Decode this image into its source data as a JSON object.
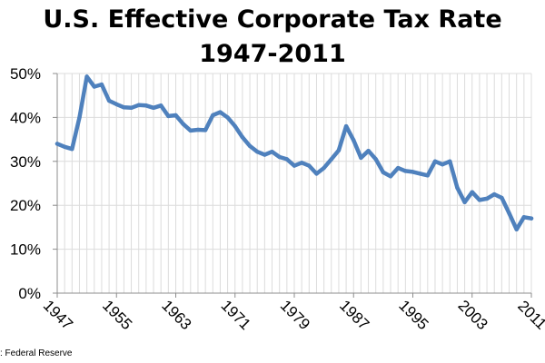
{
  "chart_data": {
    "type": "line",
    "title_line1": "U.S. Effective Corporate Tax Rate",
    "title_line2": "1947-2011",
    "source": ": Federal Reserve",
    "xlabel": "",
    "ylabel": "",
    "x_range": [
      1947,
      2011
    ],
    "ylim": [
      0,
      50
    ],
    "y_ticks": [
      0,
      10,
      20,
      30,
      40,
      50
    ],
    "y_tick_labels": [
      "0%",
      "10%",
      "20%",
      "30%",
      "40%",
      "50%"
    ],
    "x_ticks": [
      1947,
      1955,
      1963,
      1971,
      1979,
      1987,
      1995,
      2003,
      2011
    ],
    "x_tick_labels": [
      "1947",
      "1955",
      "1963",
      "1971",
      "1979",
      "1987",
      "1995",
      "2003",
      "2011"
    ],
    "grid": true,
    "line_color": "#4f81bd",
    "series": [
      {
        "name": "Effective Corporate Tax Rate",
        "x": [
          1947,
          1948,
          1949,
          1950,
          1951,
          1952,
          1953,
          1954,
          1955,
          1956,
          1957,
          1958,
          1959,
          1960,
          1961,
          1962,
          1963,
          1964,
          1965,
          1966,
          1967,
          1968,
          1969,
          1970,
          1971,
          1972,
          1973,
          1974,
          1975,
          1976,
          1977,
          1978,
          1979,
          1980,
          1981,
          1982,
          1983,
          1984,
          1985,
          1986,
          1987,
          1988,
          1989,
          1990,
          1991,
          1992,
          1993,
          1994,
          1995,
          1996,
          1997,
          1998,
          1999,
          2000,
          2001,
          2002,
          2003,
          2004,
          2005,
          2006,
          2007,
          2008,
          2009,
          2010,
          2011
        ],
        "values": [
          34.0,
          33.3,
          32.8,
          40.0,
          49.3,
          47.0,
          47.5,
          43.8,
          43.0,
          42.3,
          42.2,
          42.8,
          42.7,
          42.2,
          42.7,
          40.3,
          40.5,
          38.5,
          37.0,
          37.2,
          37.1,
          40.5,
          41.2,
          40.0,
          38.0,
          35.5,
          33.5,
          32.2,
          31.5,
          32.2,
          31.0,
          30.5,
          29.0,
          29.7,
          29.0,
          27.2,
          28.5,
          30.5,
          32.5,
          38.0,
          34.8,
          30.8,
          32.4,
          30.5,
          27.5,
          26.6,
          28.5,
          27.8,
          27.6,
          27.2,
          26.8,
          30.0,
          29.3,
          30.0,
          24.0,
          20.7,
          23.0,
          21.2,
          21.5,
          22.5,
          21.7,
          18.2,
          14.5,
          17.3,
          17.0
        ]
      }
    ]
  }
}
